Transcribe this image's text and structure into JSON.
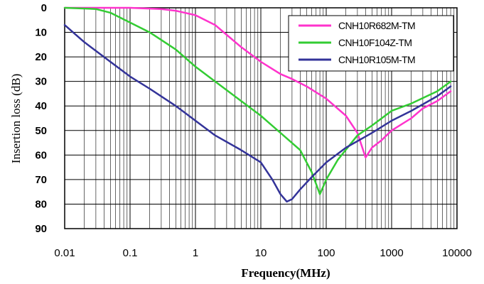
{
  "chart_data": {
    "type": "line",
    "title": "",
    "xlabel": "Frequency(MHz)",
    "ylabel": "Insertion loss (dB)",
    "xscale": "log",
    "xlim": [
      0.01,
      10000
    ],
    "ylim": [
      0,
      90
    ],
    "y_inverted": true,
    "x_ticks": [
      0.01,
      0.1,
      1,
      10,
      100,
      1000,
      10000
    ],
    "x_tick_labels": [
      "0.01",
      "0.1",
      "1",
      "10",
      "100",
      "1000",
      "10000"
    ],
    "y_ticks": [
      0,
      10,
      20,
      30,
      40,
      50,
      60,
      70,
      80,
      90
    ],
    "y_tick_labels": [
      "0",
      "10",
      "20",
      "30",
      "40",
      "50",
      "60",
      "70",
      "80",
      "90"
    ],
    "grid": true,
    "legend_position": "top-right",
    "series": [
      {
        "name": "CNH10R682M-TM",
        "color": "#ff33cc",
        "points": [
          [
            0.01,
            0
          ],
          [
            0.1,
            0
          ],
          [
            0.3,
            0.5
          ],
          [
            0.5,
            1.2
          ],
          [
            1,
            3
          ],
          [
            2,
            7
          ],
          [
            3,
            11
          ],
          [
            5,
            16
          ],
          [
            10,
            22
          ],
          [
            20,
            27
          ],
          [
            30,
            29
          ],
          [
            50,
            32
          ],
          [
            100,
            37
          ],
          [
            200,
            44
          ],
          [
            300,
            51
          ],
          [
            400,
            61
          ],
          [
            500,
            57
          ],
          [
            700,
            54
          ],
          [
            1000,
            50
          ],
          [
            2000,
            45
          ],
          [
            3000,
            41
          ],
          [
            5000,
            38
          ],
          [
            8000,
            34
          ]
        ]
      },
      {
        "name": "CNH10F104Z-TM",
        "color": "#33cc33",
        "points": [
          [
            0.01,
            0
          ],
          [
            0.03,
            0.5
          ],
          [
            0.05,
            2
          ],
          [
            0.1,
            6
          ],
          [
            0.2,
            10
          ],
          [
            0.5,
            17
          ],
          [
            1,
            24
          ],
          [
            2,
            30
          ],
          [
            5,
            38
          ],
          [
            10,
            44
          ],
          [
            20,
            51
          ],
          [
            40,
            58
          ],
          [
            60,
            67
          ],
          [
            80,
            76
          ],
          [
            100,
            70
          ],
          [
            150,
            62
          ],
          [
            300,
            52
          ],
          [
            500,
            48
          ],
          [
            1000,
            42
          ],
          [
            2000,
            39
          ],
          [
            5000,
            34
          ],
          [
            8000,
            30
          ]
        ]
      },
      {
        "name": "CNH10R105M-TM",
        "color": "#333399",
        "points": [
          [
            0.01,
            7
          ],
          [
            0.02,
            14
          ],
          [
            0.05,
            22
          ],
          [
            0.1,
            28
          ],
          [
            0.2,
            33
          ],
          [
            0.5,
            40
          ],
          [
            1,
            46
          ],
          [
            2,
            52
          ],
          [
            5,
            58
          ],
          [
            10,
            63
          ],
          [
            15,
            70
          ],
          [
            20,
            76
          ],
          [
            25,
            79
          ],
          [
            30,
            78
          ],
          [
            40,
            74
          ],
          [
            60,
            69
          ],
          [
            100,
            63
          ],
          [
            200,
            57
          ],
          [
            500,
            51
          ],
          [
            1000,
            46
          ],
          [
            2000,
            42
          ],
          [
            5000,
            36
          ],
          [
            8000,
            32
          ]
        ]
      }
    ]
  }
}
